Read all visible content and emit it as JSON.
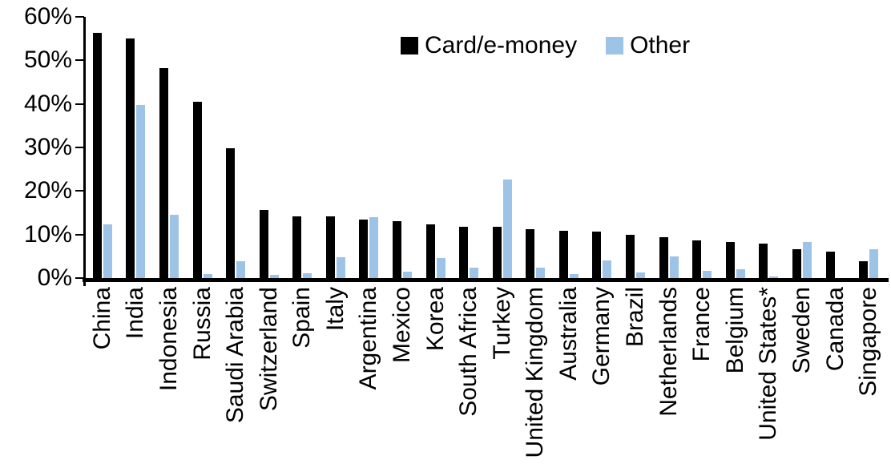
{
  "chart_data": {
    "type": "bar",
    "title": "",
    "xlabel": "",
    "ylabel": "",
    "categories": [
      "China",
      "India",
      "Indonesia",
      "Russia",
      "Saudi Arabia",
      "Switzerland",
      "Spain",
      "Italy",
      "Argentina",
      "Mexico",
      "Korea",
      "South Africa",
      "Turkey",
      "United Kingdom",
      "Australia",
      "Germany",
      "Brazil",
      "Netherlands",
      "France",
      "Belgium",
      "United States*",
      "Sweden",
      "Canada",
      "Singapore"
    ],
    "series": [
      {
        "name": "Card/e-money",
        "color": "#000000",
        "values": [
          56.3,
          55.0,
          48.3,
          40.5,
          29.8,
          15.6,
          14.2,
          14.1,
          13.5,
          13.0,
          12.3,
          11.8,
          11.7,
          11.2,
          10.9,
          10.7,
          10.0,
          9.3,
          8.7,
          8.2,
          8.0,
          6.6,
          6.0,
          3.9
        ]
      },
      {
        "name": "Other",
        "color": "#9DC3E6",
        "values": [
          12.3,
          39.7,
          14.5,
          1.0,
          3.9,
          0.8,
          1.1,
          4.7,
          13.9,
          1.5,
          4.6,
          2.4,
          22.6,
          2.4,
          1.0,
          4.0,
          1.2,
          4.9,
          1.6,
          2.1,
          0.3,
          8.2,
          0.0,
          6.7
        ]
      }
    ],
    "ylim": [
      0,
      60
    ],
    "ytick_interval": 10,
    "yticks": [
      "0%",
      "10%",
      "20%",
      "30%",
      "40%",
      "50%",
      "60%"
    ],
    "legend_position": "top-center",
    "grid": false
  },
  "colors": {
    "axis": "#000000",
    "background": "#FFFFFF",
    "card_emoney": "#000000",
    "other": "#9DC3E6"
  }
}
